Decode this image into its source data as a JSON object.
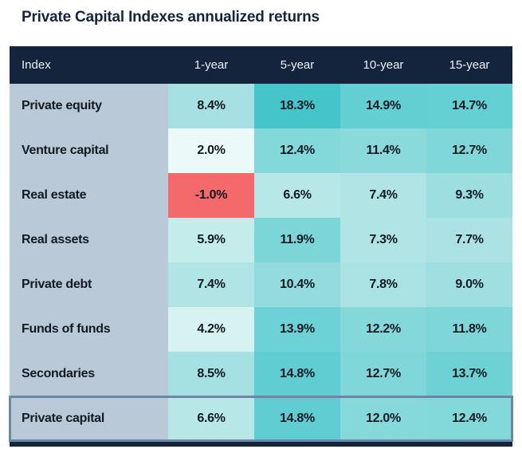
{
  "page": {
    "title": "Private Capital Indexes annualized returns"
  },
  "colors": {
    "title_color": "#16253e",
    "header_bg": "#14243c",
    "header_text": "#eef1f5",
    "index_col_bg": "#bac9d7",
    "cell_text": "#131a22",
    "negative_cell": "#f4696b",
    "highlight_border": "#6b87a3",
    "table_bottom_bar": "#14243c"
  },
  "chart_data": {
    "type": "heatmap",
    "title": "Private Capital Indexes annualized returns",
    "value_suffix": "%",
    "columns": [
      "Index",
      "1-year",
      "5-year",
      "10-year",
      "15-year"
    ],
    "color_scale_note": "teal shade darkens with higher return; negative values shown red",
    "rows": [
      {
        "name": "Private equity",
        "values": [
          8.4,
          18.3,
          14.9,
          14.7
        ],
        "cell_colors": [
          "#a6e0e3",
          "#45c4c9",
          "#63cfd2",
          "#65d0d3"
        ],
        "highlight": false
      },
      {
        "name": "Venture capital",
        "values": [
          2.0,
          12.4,
          11.4,
          12.7
        ],
        "cell_colors": [
          "#ebfaf9",
          "#83d8da",
          "#8ad9db",
          "#7fd7d9"
        ],
        "highlight": false
      },
      {
        "name": "Real estate",
        "values": [
          -1.0,
          6.6,
          7.4,
          9.3
        ],
        "cell_colors": [
          "#f4696b",
          "#b8e7e8",
          "#b0e4e5",
          "#9ddee0"
        ],
        "highlight": false
      },
      {
        "name": "Real assets",
        "values": [
          5.9,
          11.9,
          7.3,
          7.7
        ],
        "cell_colors": [
          "#c4eceb",
          "#7cd6d8",
          "#b1e4e5",
          "#ace2e4"
        ],
        "highlight": false
      },
      {
        "name": "Private debt",
        "values": [
          7.4,
          10.4,
          7.8,
          9.0
        ],
        "cell_colors": [
          "#b0e4e5",
          "#93dbdd",
          "#abe2e4",
          "#a0dfe1"
        ],
        "highlight": false
      },
      {
        "name": "Funds of funds",
        "values": [
          4.2,
          13.9,
          12.2,
          11.8
        ],
        "cell_colors": [
          "#d6f2f1",
          "#6cd2d5",
          "#84d8da",
          "#7ed6d9"
        ],
        "highlight": false
      },
      {
        "name": "Secondaries",
        "values": [
          8.5,
          14.8,
          12.7,
          13.7
        ],
        "cell_colors": [
          "#a5e0e2",
          "#5fcdd1",
          "#7fd7d9",
          "#6ed2d5"
        ],
        "highlight": false
      },
      {
        "name": "Private capital",
        "values": [
          6.6,
          14.8,
          12.0,
          12.4
        ],
        "cell_colors": [
          "#b8e7e8",
          "#5fcdd1",
          "#86d9db",
          "#83d8da"
        ],
        "highlight": true
      }
    ]
  }
}
